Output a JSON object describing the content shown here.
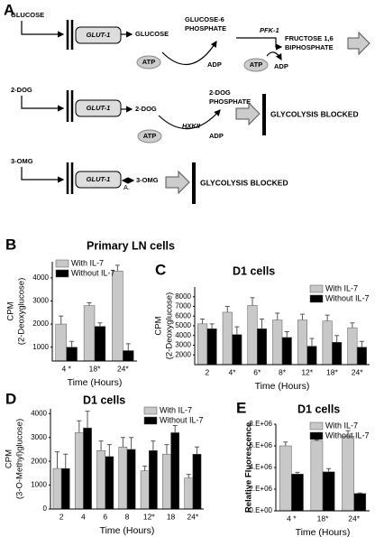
{
  "diagram": {
    "panel": "A",
    "row1": {
      "input": "GLUCOSE",
      "transporter": "GLUT-1",
      "product": "GLUCOSE",
      "enzyme_product": [
        "GLUCOSE-6",
        "PHOSPHATE"
      ],
      "atp": "ATP",
      "adp": "ADP",
      "enzyme": "PFK-1",
      "atp2": "ATP",
      "adp2": "ADP",
      "end": [
        "FRUCTOSE 1,6",
        "BIPHOSPHATE"
      ]
    },
    "row2": {
      "input": "2-DOG",
      "transporter": "GLUT-1",
      "product": "2-DOG",
      "enzyme_product": [
        "2-DOG",
        "PHOSPHATE"
      ],
      "atp": "ATP",
      "enzyme": "HXKII",
      "adp": "ADP",
      "end": "GLYCOLYSIS BLOCKED"
    },
    "row3": {
      "input": "3-OMG",
      "transporter": "GLUT-1",
      "note": "A.",
      "product": "3-OMG",
      "end": "GLYCOLYSIS BLOCKED"
    }
  },
  "chart_data": [
    {
      "type": "bar",
      "panel": "B",
      "title": "Primary LN cells",
      "ylabel": [
        "CPM",
        "(2-Deoxyglucose)"
      ],
      "xlabel": "Time (Hours)",
      "categories": [
        "4 *",
        "18*",
        "24*"
      ],
      "series": [
        {
          "name": "With IL-7",
          "color": "#c8c8c8",
          "values": [
            2000,
            2800,
            4300
          ],
          "errors": [
            350,
            120,
            250
          ]
        },
        {
          "name": "Without IL-7",
          "color": "#000000",
          "values": [
            1000,
            1900,
            850
          ],
          "errors": [
            250,
            150,
            300
          ]
        }
      ],
      "ylim": [
        400,
        4700
      ],
      "yticks": [
        1000,
        2000,
        3000,
        4000
      ],
      "legend": "upper left",
      "grid": false
    },
    {
      "type": "bar",
      "panel": "C",
      "title": "D1 cells",
      "ylabel": [
        "CPM",
        "(2-Deoxyglucose)"
      ],
      "xlabel": "Time (Hours)",
      "categories": [
        "2",
        "4*",
        "6*",
        "8*",
        "12*",
        "18*",
        "24*"
      ],
      "series": [
        {
          "name": "With IL-7",
          "color": "#c8c8c8",
          "values": [
            5200,
            6400,
            7100,
            5600,
            5600,
            5500,
            4800
          ],
          "errors": [
            500,
            600,
            800,
            700,
            600,
            600,
            500
          ]
        },
        {
          "name": "Without IL-7",
          "color": "#000000",
          "values": [
            4700,
            4100,
            4700,
            3800,
            2900,
            3300,
            2800
          ],
          "errors": [
            500,
            800,
            1000,
            600,
            800,
            700,
            600
          ]
        }
      ],
      "ylim": [
        1000,
        9000
      ],
      "yticks": [
        2000,
        3000,
        4000,
        5000,
        6000,
        7000,
        8000
      ],
      "legend": "upper right",
      "grid": false
    },
    {
      "type": "bar",
      "panel": "D",
      "title": "D1 cells",
      "ylabel": [
        "CPM",
        "(3-O-Methyl)glucose)"
      ],
      "xlabel": "Time (Hours)",
      "categories": [
        "2",
        "4",
        "6",
        "8",
        "12*",
        "18",
        "24*"
      ],
      "series": [
        {
          "name": "With IL-7",
          "color": "#c8c8c8",
          "values": [
            1700,
            3200,
            2450,
            2600,
            1600,
            2300,
            1300
          ],
          "errors": [
            700,
            500,
            400,
            400,
            200,
            400,
            150
          ]
        },
        {
          "name": "Without IL-7",
          "color": "#000000",
          "values": [
            1700,
            3400,
            2200,
            2500,
            2450,
            3200,
            2300
          ],
          "errors": [
            600,
            700,
            500,
            500,
            400,
            300,
            300
          ]
        }
      ],
      "ylim": [
        0,
        4200
      ],
      "yticks": [
        0,
        1000,
        2000,
        3000,
        4000
      ],
      "legend": "upper right",
      "grid": false
    },
    {
      "type": "bar",
      "panel": "E",
      "title": "D1 cells",
      "ylabel": [
        "Relative Fluorescence"
      ],
      "xlabel": "Time (Hours)",
      "categories": [
        "4 *",
        "18*",
        "24*"
      ],
      "series": [
        {
          "name": "With IL-7",
          "color": "#c8c8c8",
          "values": [
            6000000,
            6450000,
            6900000
          ],
          "errors": [
            350000,
            100000,
            500000
          ]
        },
        {
          "name": "Without IL-7",
          "color": "#000000",
          "values": [
            3400000,
            3600000,
            1600000
          ],
          "errors": [
            150000,
            300000,
            50000
          ]
        }
      ],
      "ylim": [
        0,
        8000000
      ],
      "yticks": [
        {
          "value": 0,
          "label": "0.E+00"
        },
        {
          "value": 2000000,
          "label": "2.E+06"
        },
        {
          "value": 4000000,
          "label": "4.E+06"
        },
        {
          "value": 6000000,
          "label": "6.E+06"
        },
        {
          "value": 8000000,
          "label": "8.E+06"
        }
      ],
      "legend": "upper right",
      "grid": false
    }
  ]
}
